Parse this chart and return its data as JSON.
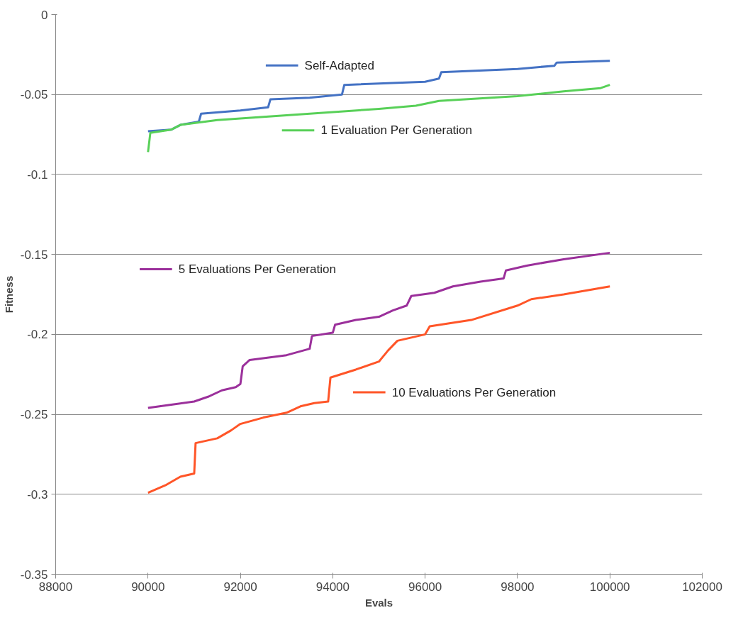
{
  "chart_data": {
    "type": "line",
    "xlabel": "Evals",
    "ylabel": "Fitness",
    "xlim": [
      88000,
      102000
    ],
    "xticks": [
      88000,
      90000,
      92000,
      94000,
      96000,
      98000,
      100000,
      102000
    ],
    "ylim": [
      -0.35,
      0
    ],
    "yticks": [
      -0.35,
      -0.3,
      -0.25,
      -0.2,
      -0.15,
      -0.1,
      -0.05,
      0
    ],
    "grid": "y",
    "legend": "right",
    "marker": "none",
    "line_style": "solid",
    "series": [
      {
        "name": "Self-Adapted",
        "color": "#4472c4",
        "x": [
          90000,
          90500,
          90700,
          91100,
          91150,
          92000,
          92600,
          92650,
          93500,
          94200,
          94250,
          96000,
          96300,
          96350,
          98000,
          98800,
          98850,
          100000
        ],
        "values": [
          -0.073,
          -0.072,
          -0.069,
          -0.067,
          -0.062,
          -0.06,
          -0.058,
          -0.053,
          -0.052,
          -0.05,
          -0.044,
          -0.042,
          -0.04,
          -0.036,
          -0.034,
          -0.032,
          -0.03,
          -0.029
        ]
      },
      {
        "name": "1 Evaluation Per Generation",
        "color": "#58d058",
        "x": [
          90000,
          90050,
          90500,
          90700,
          91500,
          93000,
          95000,
          95800,
          96300,
          98000,
          99000,
          99800,
          100000
        ],
        "values": [
          -0.086,
          -0.074,
          -0.072,
          -0.069,
          -0.066,
          -0.063,
          -0.059,
          -0.057,
          -0.054,
          -0.051,
          -0.048,
          -0.046,
          -0.044
        ]
      },
      {
        "name": "5 Evaluations Per Generation",
        "color": "#9b309b",
        "x": [
          90000,
          90500,
          91000,
          91300,
          91600,
          91900,
          92000,
          92050,
          92200,
          93000,
          93500,
          93550,
          94000,
          94050,
          94500,
          95000,
          95300,
          95600,
          95700,
          96200,
          96600,
          97200,
          97700,
          97750,
          98200,
          99000,
          100000
        ],
        "values": [
          -0.246,
          -0.244,
          -0.242,
          -0.239,
          -0.235,
          -0.233,
          -0.231,
          -0.22,
          -0.216,
          -0.213,
          -0.209,
          -0.201,
          -0.199,
          -0.194,
          -0.191,
          -0.189,
          -0.185,
          -0.182,
          -0.176,
          -0.174,
          -0.17,
          -0.167,
          -0.165,
          -0.16,
          -0.157,
          -0.153,
          -0.149
        ]
      },
      {
        "name": "10 Evaluations Per Generation",
        "color": "#ff5528",
        "x": [
          90000,
          90400,
          90700,
          91000,
          91030,
          91500,
          91800,
          92000,
          92500,
          93000,
          93300,
          93600,
          93900,
          93950,
          94500,
          95000,
          95200,
          95400,
          96000,
          96100,
          97000,
          98000,
          98300,
          99000,
          100000
        ],
        "values": [
          -0.299,
          -0.294,
          -0.289,
          -0.287,
          -0.268,
          -0.265,
          -0.26,
          -0.256,
          -0.252,
          -0.249,
          -0.245,
          -0.243,
          -0.242,
          -0.227,
          -0.222,
          -0.217,
          -0.21,
          -0.204,
          -0.2,
          -0.195,
          -0.191,
          -0.182,
          -0.178,
          -0.175,
          -0.17
        ]
      }
    ]
  }
}
